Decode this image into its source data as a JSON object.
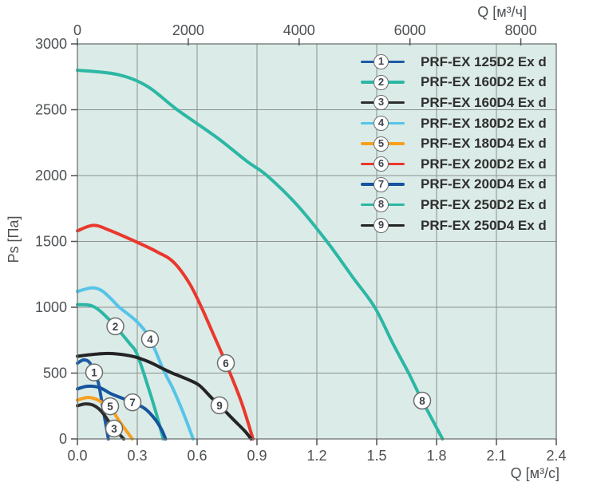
{
  "chart_data": {
    "type": "line",
    "title": "",
    "background_color": "#dbebe7",
    "grid": true,
    "grid_color": "#8b918f",
    "border_color": "#6d7270",
    "tick_color": "#4d5154",
    "legend_position": "top-right",
    "axes": {
      "top_x": {
        "label": "Q [м³/ч]",
        "tick_labels": [
          "0",
          "2000",
          "4000",
          "6000",
          "8000"
        ],
        "tick_values": [
          0,
          2000,
          4000,
          6000,
          8000
        ],
        "range": [
          0,
          8640
        ]
      },
      "bottom_x": {
        "label": "Q [м³/с]",
        "tick_labels": [
          "0.0",
          "0.3",
          "0.6",
          "0.9",
          "1.2",
          "1.5",
          "1.8",
          "2.1",
          "2.4"
        ],
        "tick_values": [
          0,
          0.3,
          0.6,
          0.9,
          1.2,
          1.5,
          1.8,
          2.1,
          2.4
        ],
        "range": [
          0,
          2.4
        ]
      },
      "left_y": {
        "label": "Ps [Па]",
        "tick_labels": [
          "0",
          "500",
          "1000",
          "1500",
          "2000",
          "2500",
          "3000"
        ],
        "tick_values": [
          0,
          500,
          1000,
          1500,
          2000,
          2500,
          3000
        ],
        "range": [
          0,
          3000
        ]
      }
    },
    "series": [
      {
        "number": "1",
        "name": "PRF-EX 125D2 Ex d",
        "color": "#1c5aa5",
        "label_at": {
          "q": 0.084,
          "ps": 505
        },
        "points": [
          [
            0,
            575
          ],
          [
            0.03,
            600
          ],
          [
            0.06,
            582
          ],
          [
            0.084,
            505
          ],
          [
            0.105,
            425
          ],
          [
            0.13,
            215
          ],
          [
            0.155,
            0
          ]
        ]
      },
      {
        "number": "2",
        "name": "PRF-EX 160D2 Ex d",
        "color": "#2cb7a5",
        "label_at": {
          "q": 0.19,
          "ps": 855
        },
        "points": [
          [
            0,
            1020
          ],
          [
            0.06,
            1016
          ],
          [
            0.1,
            988
          ],
          [
            0.15,
            920
          ],
          [
            0.19,
            855
          ],
          [
            0.26,
            728
          ],
          [
            0.3,
            640
          ],
          [
            0.36,
            368
          ],
          [
            0.4,
            168
          ],
          [
            0.43,
            0
          ]
        ]
      },
      {
        "number": "3",
        "name": "PRF-EX 160D4 Ex d",
        "color": "#2d2d2d",
        "label_at": {
          "q": 0.184,
          "ps": 79
        },
        "points": [
          [
            0,
            252
          ],
          [
            0.04,
            266
          ],
          [
            0.08,
            256
          ],
          [
            0.12,
            210
          ],
          [
            0.16,
            126
          ],
          [
            0.184,
            79
          ],
          [
            0.21,
            36
          ],
          [
            0.232,
            0
          ]
        ]
      },
      {
        "number": "4",
        "name": "PRF-EX 180D2 Ex d",
        "color": "#56c4e9",
        "label_at": {
          "q": 0.364,
          "ps": 758
        },
        "points": [
          [
            0,
            1120
          ],
          [
            0.07,
            1147
          ],
          [
            0.12,
            1128
          ],
          [
            0.17,
            1062
          ],
          [
            0.21,
            1000
          ],
          [
            0.3,
            888
          ],
          [
            0.364,
            758
          ],
          [
            0.43,
            528
          ],
          [
            0.48,
            378
          ],
          [
            0.53,
            200
          ],
          [
            0.58,
            0
          ]
        ]
      },
      {
        "number": "5",
        "name": "PRF-EX 180D4 Ex d",
        "color": "#f8a01e",
        "label_at": {
          "q": 0.164,
          "ps": 248
        },
        "points": [
          [
            0,
            295
          ],
          [
            0.05,
            315
          ],
          [
            0.09,
            304
          ],
          [
            0.13,
            272
          ],
          [
            0.164,
            248
          ],
          [
            0.2,
            158
          ],
          [
            0.24,
            72
          ],
          [
            0.275,
            0
          ]
        ]
      },
      {
        "number": "6",
        "name": "PRF-EX 200D2 Ex d",
        "color": "#ea382d",
        "label_at": {
          "q": 0.744,
          "ps": 576
        },
        "points": [
          [
            0,
            1580
          ],
          [
            0.08,
            1622
          ],
          [
            0.16,
            1585
          ],
          [
            0.29,
            1500
          ],
          [
            0.4,
            1420
          ],
          [
            0.48,
            1345
          ],
          [
            0.56,
            1185
          ],
          [
            0.62,
            1005
          ],
          [
            0.68,
            800
          ],
          [
            0.744,
            576
          ],
          [
            0.82,
            288
          ],
          [
            0.88,
            0
          ]
        ]
      },
      {
        "number": "7",
        "name": "PRF-EX 200D4 Ex d",
        "color": "#15549e",
        "label_at": {
          "q": 0.276,
          "ps": 278
        },
        "points": [
          [
            0,
            380
          ],
          [
            0.05,
            400
          ],
          [
            0.11,
            390
          ],
          [
            0.17,
            342
          ],
          [
            0.23,
            306
          ],
          [
            0.276,
            278
          ],
          [
            0.34,
            228
          ],
          [
            0.39,
            148
          ],
          [
            0.42,
            76
          ],
          [
            0.442,
            0
          ]
        ]
      },
      {
        "number": "8",
        "name": "PRF-EX 250D2 Ex d",
        "color": "#2cb7a5",
        "label_at": {
          "q": 1.728,
          "ps": 291
        },
        "points": [
          [
            0,
            2800
          ],
          [
            0.2,
            2768
          ],
          [
            0.35,
            2678
          ],
          [
            0.5,
            2500
          ],
          [
            0.7,
            2288
          ],
          [
            0.85,
            2108
          ],
          [
            0.95,
            2000
          ],
          [
            1.1,
            1778
          ],
          [
            1.25,
            1500
          ],
          [
            1.38,
            1228
          ],
          [
            1.49,
            1000
          ],
          [
            1.58,
            728
          ],
          [
            1.66,
            500
          ],
          [
            1.728,
            291
          ],
          [
            1.83,
            0
          ]
        ]
      },
      {
        "number": "9",
        "name": "PRF-EX 250D4 Ex d",
        "color": "#242424",
        "label_at": {
          "q": 0.712,
          "ps": 255
        },
        "points": [
          [
            0,
            628
          ],
          [
            0.1,
            645
          ],
          [
            0.18,
            648
          ],
          [
            0.28,
            626
          ],
          [
            0.36,
            584
          ],
          [
            0.43,
            532
          ],
          [
            0.475,
            500
          ],
          [
            0.55,
            454
          ],
          [
            0.61,
            408
          ],
          [
            0.67,
            316
          ],
          [
            0.712,
            255
          ],
          [
            0.78,
            150
          ],
          [
            0.84,
            58
          ],
          [
            0.87,
            0
          ]
        ]
      }
    ]
  }
}
